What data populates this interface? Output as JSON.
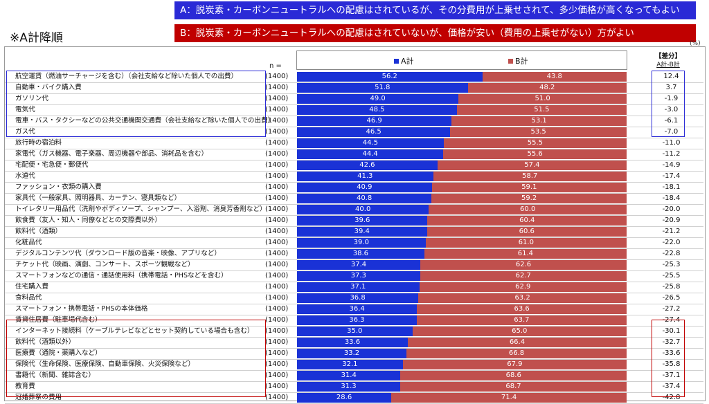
{
  "banners": {
    "a": "A：脱炭素・カーボンニュートラルへの配慮はされているが、その分費用が上乗せされて、多少価格が高くなってもよい",
    "b": "B：脱炭素・カーボンニュートラルへの配慮はされていないが、価格が安い（費用の上乗せがない）方がよい"
  },
  "sort_note": "※A計降順",
  "unit": "(%)",
  "n_label": "n =",
  "diff_header": {
    "title": "【差分】",
    "sub": "A計-B計"
  },
  "colors": {
    "a": "#1a32d6",
    "b": "#c0504d",
    "highlight_top": "#2a2ad6",
    "highlight_bottom": "#c00000"
  },
  "chart_data": {
    "type": "bar",
    "orientation": "horizontal-stacked-100",
    "legend": [
      "A計",
      "B計"
    ],
    "xlim": [
      0,
      100
    ],
    "categories": [
      "航空運賃（燃油サーチャージを含む）（会社支給など除いた個人での出費）",
      "自動車・バイク購入費",
      "ガソリン代",
      "電気代",
      "電車・バス・タクシーなどの公共交通機関交通費（会社支給など除いた個人での出費）",
      "ガス代",
      "旅行時の宿泊料",
      "家電代（ガス機器、電子楽器、周辺機器や部品、消耗品を含む）",
      "宅配便・宅急便・郵便代",
      "水道代",
      "ファッション・衣類の購入費",
      "家具代（一般家具、照明器具、カーテン、寝具類など）",
      "トイレタリー用品代（洗剤やボディソープ、シャンプー、入浴剤、消臭芳香剤など）",
      "飲食費（友人・知人・同僚などとの交際費以外）",
      "飲料代（酒類）",
      "化粧品代",
      "デジタルコンテンツ代（ダウンロード版の音楽・映像、アプリなど）",
      "チケット代（映画、演劇、コンサート、スポーツ観戦など）",
      "スマートフォンなどの通信・通話使用料（携帯電話・PHSなどを含む）",
      "住宅購入費",
      "食料品代",
      "スマートフォン・携帯電話・PHSの本体価格",
      "賃貸住居費（駐車場代含む）",
      "インターネット接続料（ケーブルテレビなどとセット契約している場合も含む）",
      "飲料代（酒類以外）",
      "医療費（通院・薬購入など）",
      "保険代（生命保険、医療保険、自動車保険、火災保険など）",
      "書籍代（新聞、雑誌含む）",
      "教育費",
      "冠婚葬祭の費用"
    ],
    "n": [
      "(1400)",
      "(1400)",
      "(1400)",
      "(1400)",
      "(1400)",
      "(1400)",
      "(1400)",
      "(1400)",
      "(1400)",
      "(1400)",
      "(1400)",
      "(1400)",
      "(1400)",
      "(1400)",
      "(1400)",
      "(1400)",
      "(1400)",
      "(1400)",
      "(1400)",
      "(1400)",
      "(1400)",
      "(1400)",
      "(1400)",
      "(1400)",
      "(1400)",
      "(1400)",
      "(1400)",
      "(1400)",
      "(1400)",
      "(1400)"
    ],
    "series": [
      {
        "name": "A計",
        "values": [
          56.2,
          51.8,
          49.0,
          48.5,
          46.9,
          46.5,
          44.5,
          44.4,
          42.6,
          41.3,
          40.9,
          40.8,
          40.0,
          39.6,
          39.4,
          39.0,
          38.6,
          37.4,
          37.3,
          37.1,
          36.8,
          36.4,
          36.3,
          35.0,
          33.6,
          33.2,
          32.1,
          31.4,
          31.3,
          28.6
        ]
      },
      {
        "name": "B計",
        "values": [
          43.8,
          48.2,
          51.0,
          51.5,
          53.1,
          53.5,
          55.5,
          55.6,
          57.4,
          58.7,
          59.1,
          59.2,
          60.0,
          60.4,
          60.6,
          61.0,
          61.4,
          62.6,
          62.7,
          62.9,
          63.2,
          63.6,
          63.7,
          65.0,
          66.4,
          66.8,
          67.9,
          68.6,
          68.7,
          71.4
        ]
      }
    ],
    "diff": [
      "12.4",
      "3.7",
      "-1.9",
      "-3.0",
      "-6.1",
      "-7.0",
      "-11.0",
      "-11.2",
      "-14.9",
      "-17.4",
      "-18.1",
      "-18.4",
      "-20.0",
      "-20.9",
      "-21.2",
      "-22.0",
      "-22.8",
      "-25.3",
      "-25.5",
      "-25.8",
      "-26.5",
      "-27.2",
      "-27.4",
      "-30.1",
      "-32.7",
      "-33.6",
      "-35.8",
      "-37.1",
      "-37.4",
      "-42.8"
    ]
  }
}
